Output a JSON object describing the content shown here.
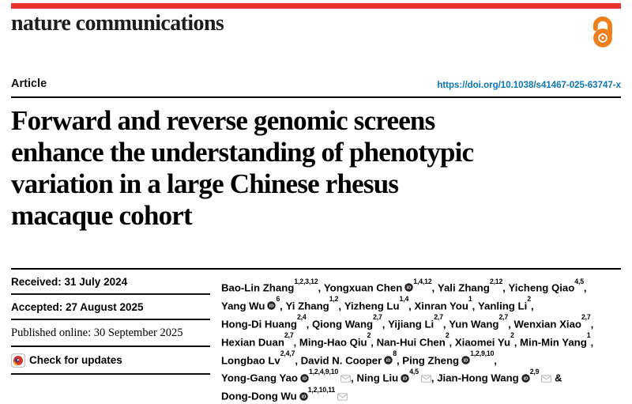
{
  "journal": {
    "wordmark": "nature communications"
  },
  "article": {
    "kicker": "Article",
    "doi": "https://doi.org/10.1038/s41467-025-63747-x"
  },
  "title": {
    "full": "Forward and reverse genomic screens enhance the understanding of phenotypic variation in a large Chinese rhesus macaque cohort",
    "lines": [
      "Forward and reverse genomic screens",
      "enhance the understanding of phenotypic",
      "variation in a large Chinese rhesus",
      "macaque cohort"
    ]
  },
  "dates": {
    "received": "Received: 31 July 2024",
    "accepted": "Accepted: 27 August 2025",
    "published": "Published online: 30 September 2025",
    "check_updates": "Check for updates"
  },
  "authors": {
    "list": [
      {
        "name": "Bao-Lin Zhang",
        "sup": "1,2,3,12",
        "orcid": false,
        "email": false,
        "sep": ","
      },
      {
        "name": "Yongxuan Chen",
        "sup": "1,4,12",
        "orcid": true,
        "email": false,
        "sep": ","
      },
      {
        "name": "Yali Zhang",
        "sup": "2,12",
        "orcid": false,
        "email": false,
        "sep": ","
      },
      {
        "name": "Yicheng Qiao",
        "sup": "4,5",
        "orcid": false,
        "email": false,
        "sep": ","
      },
      {
        "name": "Yang Wu",
        "sup": "6",
        "orcid": true,
        "email": false,
        "sep": ","
      },
      {
        "name": "Yi Zhang",
        "sup": "1,2",
        "orcid": false,
        "email": false,
        "sep": ","
      },
      {
        "name": "Yizheng Lu",
        "sup": "1,4",
        "orcid": false,
        "email": false,
        "sep": ","
      },
      {
        "name": "Xinran You",
        "sup": "1",
        "orcid": false,
        "email": false,
        "sep": ","
      },
      {
        "name": "Yanling Li",
        "sup": "2",
        "orcid": false,
        "email": false,
        "sep": ","
      },
      {
        "name": "Hong-Di Huang",
        "sup": "2,4",
        "orcid": false,
        "email": false,
        "sep": ","
      },
      {
        "name": "Qiong Wang",
        "sup": "2,7",
        "orcid": false,
        "email": false,
        "sep": ","
      },
      {
        "name": "Yijiang Li",
        "sup": "2,7",
        "orcid": false,
        "email": false,
        "sep": ","
      },
      {
        "name": "Yun Wang",
        "sup": "2,7",
        "orcid": false,
        "email": false,
        "sep": ","
      },
      {
        "name": "Wenxian Xiao",
        "sup": "2,7",
        "orcid": false,
        "email": false,
        "sep": ","
      },
      {
        "name": "Hexian Duan",
        "sup": "2,7",
        "orcid": false,
        "email": false,
        "sep": ","
      },
      {
        "name": "Ming-Hao Qiu",
        "sup": "2",
        "orcid": false,
        "email": false,
        "sep": ","
      },
      {
        "name": "Nan-Hui Chen",
        "sup": "2",
        "orcid": false,
        "email": false,
        "sep": ","
      },
      {
        "name": "Xiaomei Yu",
        "sup": "2",
        "orcid": false,
        "email": false,
        "sep": ","
      },
      {
        "name": "Min-Min Yang",
        "sup": "1",
        "orcid": false,
        "email": false,
        "sep": ","
      },
      {
        "name": "Longbao Lv",
        "sup": "2,4,7",
        "orcid": false,
        "email": false,
        "sep": ","
      },
      {
        "name": "David N. Cooper",
        "sup": "8",
        "orcid": true,
        "email": false,
        "sep": ","
      },
      {
        "name": "Ping Zheng",
        "sup": "1,2,9,10",
        "orcid": true,
        "email": false,
        "sep": ","
      },
      {
        "name": "Yong-Gang Yao",
        "sup": "1,2,4,9,10",
        "orcid": true,
        "email": true,
        "sep": ","
      },
      {
        "name": "Ning Liu",
        "sup": "4,5",
        "orcid": true,
        "email": true,
        "sep": ","
      },
      {
        "name": "Jian-Hong Wang",
        "sup": "2,9",
        "orcid": true,
        "email": true,
        "sep": " &"
      },
      {
        "name": "Dong-Dong Wu",
        "sup": "1,2,10,11",
        "orcid": true,
        "email": true,
        "sep": ""
      }
    ]
  },
  "colors": {
    "brand_red": "#e8332a",
    "link_blue": "#0d76b8",
    "oa_orange": "#ef7f1a",
    "rule_black": "#000000"
  }
}
